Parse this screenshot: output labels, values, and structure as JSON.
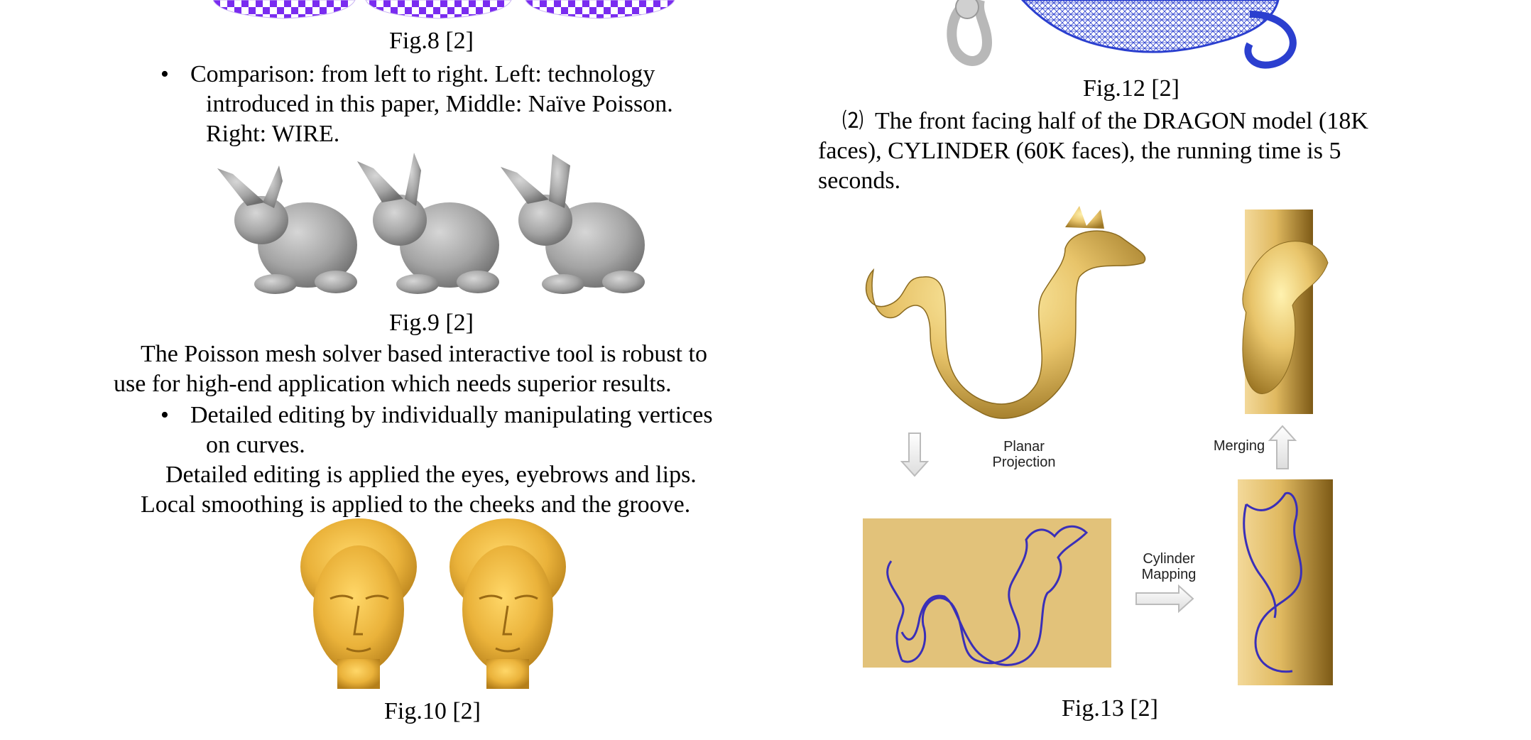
{
  "left": {
    "fig8_caption": "Fig.8 [2]",
    "bullet1": {
      "line1": "Comparison: from left to right. Left: technology",
      "line2": "introduced in this paper, Middle: Naïve Poisson.",
      "line3": "Right: WIRE."
    },
    "fig9_caption": "Fig.9 [2]",
    "para1": {
      "line1": "The Poisson mesh solver based interactive tool is robust to",
      "line2": "use for high-end application which needs superior results."
    },
    "bullet2": {
      "line1": "Detailed editing by individually manipulating vertices",
      "line2": "on curves."
    },
    "para2": {
      "line1": "Detailed editing is applied the eyes, eyebrows and lips.",
      "line2": "Local smoothing is applied to the cheeks and the groove."
    },
    "fig10_caption": "Fig.10 [2]"
  },
  "right": {
    "fig12_caption": "Fig.12 [2]",
    "para": {
      "line1_marker": "⑵",
      "line1": "The front facing half of the DRAGON model (18K",
      "line2": "faces), CYLINDER (60K faces), the running time is 5",
      "line3": "seconds."
    },
    "fig13": {
      "planar_line1": "Planar",
      "planar_line2": "Projection",
      "merging": "Merging",
      "cyl_line1": "Cylinder",
      "cyl_line2": "Mapping"
    },
    "fig13_caption": "Fig.13 [2]"
  },
  "colors": {
    "gold": "#e8c46a",
    "gold_dark": "#b8913c",
    "mesh_blue": "#2b3fcf",
    "checker_purple": "#7a2cf0",
    "bunny_gray": "#9a9a9a",
    "bust_yellow": "#f0b93a"
  }
}
